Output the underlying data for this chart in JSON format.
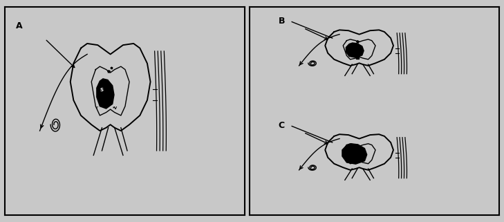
{
  "bg_color": "#c8c8c8",
  "line_color": "#000000",
  "label_A": "A",
  "label_B": "B",
  "label_C": "C",
  "figsize": [
    7.29,
    3.21
  ],
  "dpi": 100
}
